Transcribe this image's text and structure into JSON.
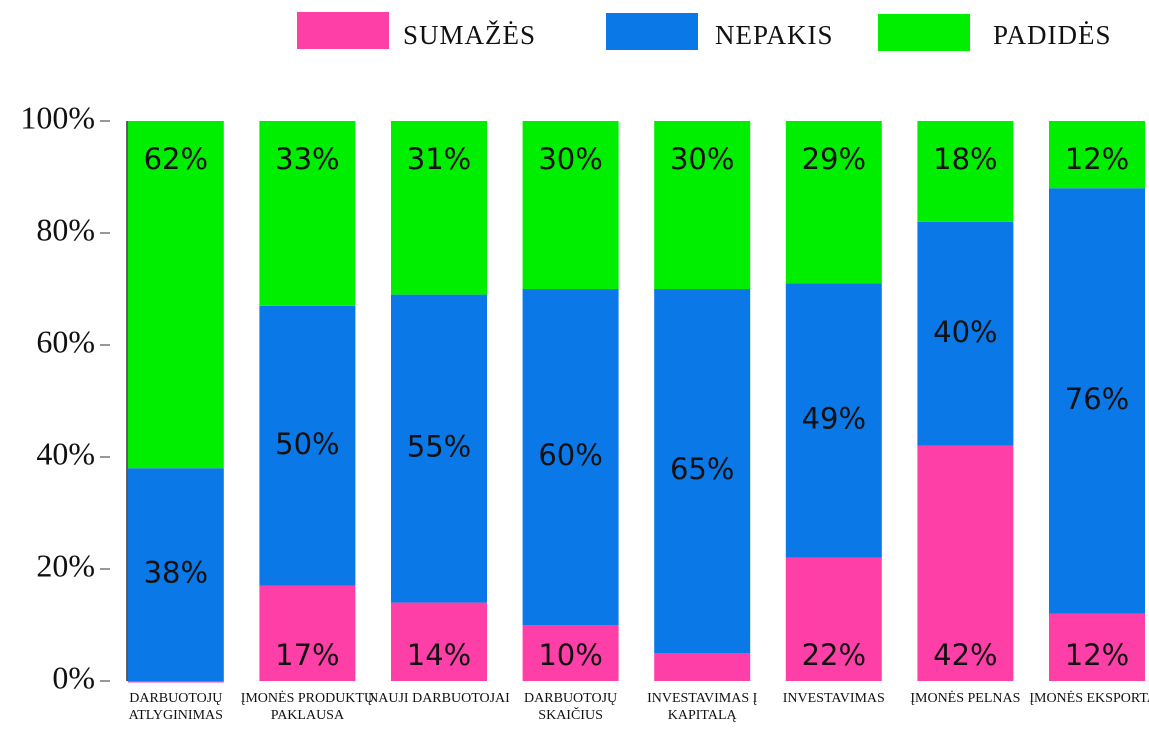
{
  "chart_data": {
    "type": "stacked_bar",
    "categories": [
      "DARBUOTOJŲ ATLYGINIMAS",
      "ĮMONĖS PRODUKTŲ PAKLAUSA",
      "NAUJI DARBUOTOJAI",
      "DARBUOTOJŲ SKAIČIUS",
      "INVESTAVIMAS Į KAPITALĄ",
      "INVESTAVIMAS",
      "ĮMONĖS PELNAS",
      "ĮMONĖS EKSPORTAS"
    ],
    "series": [
      {
        "name": "SUMAŽĖS",
        "color": "#ff3fa8",
        "values": [
          0,
          17,
          14,
          10,
          5,
          22,
          42,
          12
        ],
        "value_labels": [
          null,
          "17%",
          "14%",
          "10%",
          null,
          "22%",
          "42%",
          "12%"
        ]
      },
      {
        "name": "NEPAKIS",
        "color": "#0a78e6",
        "values": [
          38,
          50,
          55,
          60,
          65,
          49,
          40,
          76
        ],
        "value_labels": [
          "38%",
          "50%",
          "55%",
          "60%",
          "65%",
          "49%",
          "40%",
          "76%"
        ]
      },
      {
        "name": "PADIDĖS",
        "color": "#00ee00",
        "values": [
          62,
          33,
          31,
          30,
          30,
          29,
          18,
          12
        ],
        "value_labels": [
          "62%",
          "33%",
          "31%",
          "30%",
          "30%",
          "29%",
          "18%",
          "12%"
        ]
      }
    ],
    "ylim": [
      0,
      100
    ],
    "yticks": [
      {
        "value": 0,
        "label": "0%"
      },
      {
        "value": 20,
        "label": "20%"
      },
      {
        "value": 40,
        "label": "40%"
      },
      {
        "value": 60,
        "label": "60%"
      },
      {
        "value": 80,
        "label": "80%"
      },
      {
        "value": 100,
        "label": "100%"
      }
    ],
    "legend": "top"
  }
}
